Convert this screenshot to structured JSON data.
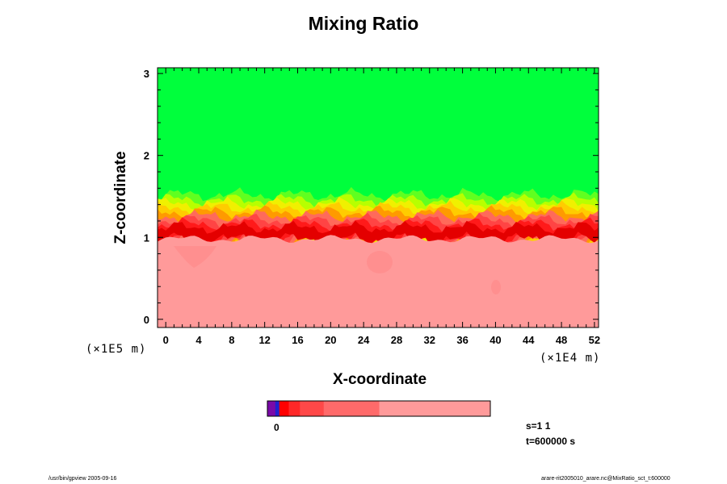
{
  "chart_data": {
    "type": "heatmap",
    "title": "Mixing Ratio",
    "xlabel": "X-coordinate",
    "ylabel": "Z-coordinate",
    "x_multiplier": "(×1E4 m)",
    "y_multiplier": "(×1E5 m)",
    "xlim": [
      -1,
      52.5
    ],
    "ylim": [
      -0.1,
      3.07
    ],
    "x_ticks": [
      "0",
      "4",
      "8",
      "12",
      "16",
      "20",
      "24",
      "28",
      "32",
      "36",
      "40",
      "44",
      "48",
      "52"
    ],
    "y_ticks": [
      "0",
      "1",
      "2",
      "3"
    ],
    "layers": {
      "lower_color": "#ff9a9a",
      "upper_color": "#00ff3c",
      "interface_height": 1.1,
      "interface_colors": [
        "#e40000",
        "#ff1a1a",
        "#ff4444",
        "#ff6a5a",
        "#ff9a00",
        "#ffcc00",
        "#f0f000",
        "#b8ff00",
        "#60ff20"
      ]
    },
    "colorbar": {
      "colors": [
        "#7a0aa8",
        "#2020d0",
        "#ff0000",
        "#ff2828",
        "#ff4848",
        "#ff6a6a",
        "#ff9a9a"
      ],
      "widths": [
        1,
        0.5,
        1.2,
        1.4,
        3,
        7,
        14
      ],
      "tick_label": "0"
    },
    "info": {
      "slice": "s=1 1",
      "time": "t=600000 s"
    }
  },
  "footer": {
    "left": "/usr/bin/gpview 2005-09-16",
    "right": "arare-rit2005010_arare.nc@MixRatio_sct_t:600000"
  }
}
